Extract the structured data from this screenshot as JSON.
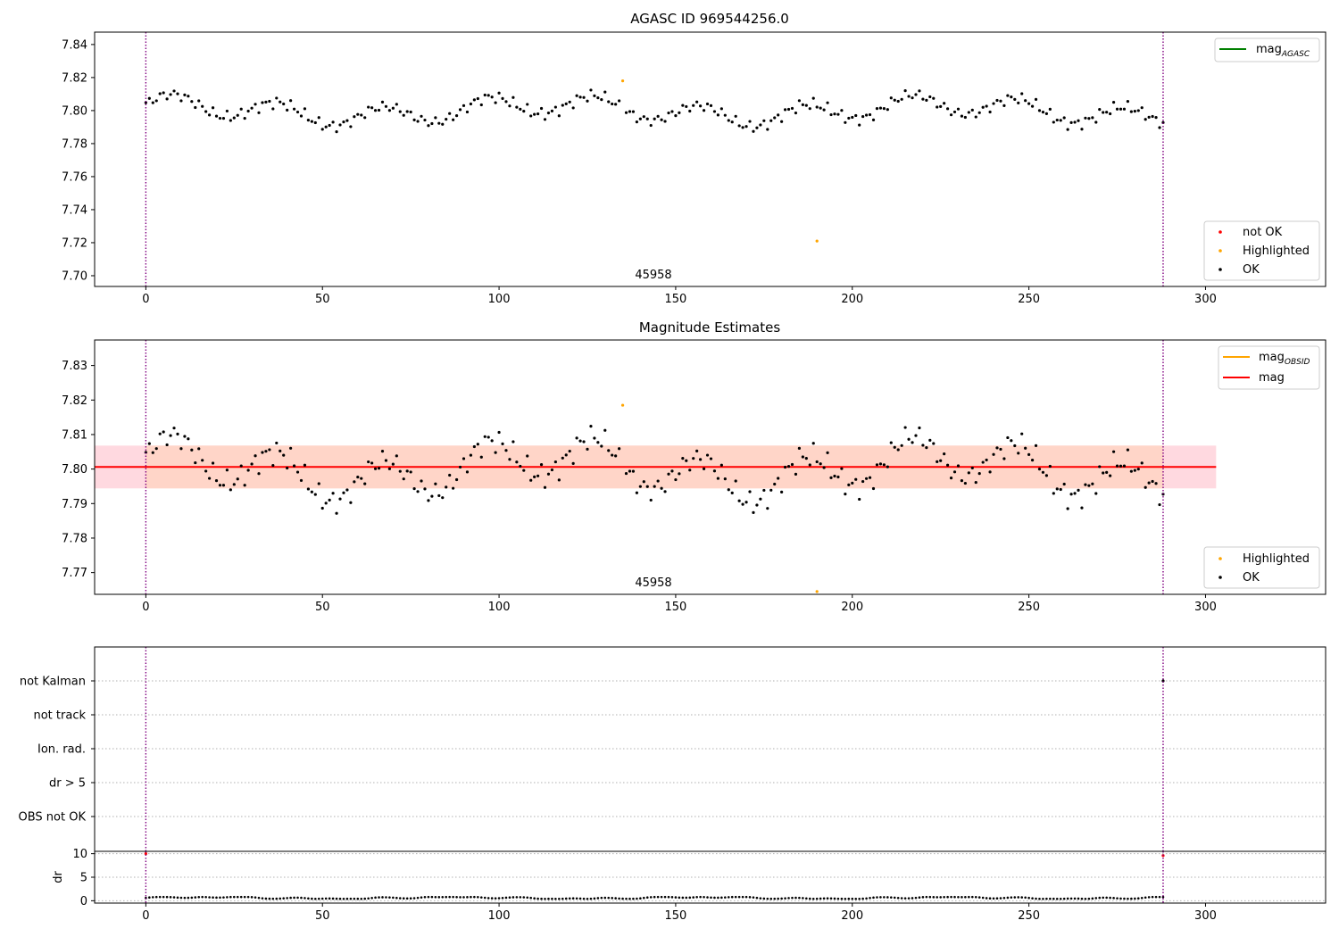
{
  "chart_data": [
    {
      "type": "scatter",
      "title": "AGASC ID 969544256.0",
      "xlim": [
        -14.5,
        334
      ],
      "ylim": [
        7.6935,
        7.8475
      ],
      "xticks": [
        0,
        50,
        100,
        150,
        200,
        250,
        300
      ],
      "yticks": [
        7.7,
        7.72,
        7.74,
        7.76,
        7.78,
        7.8,
        7.82,
        7.84
      ],
      "ytick_labels": [
        "7.70",
        "7.72",
        "7.74",
        "7.76",
        "7.78",
        "7.80",
        "7.82",
        "7.84"
      ],
      "grid": false,
      "vlines": [
        0,
        288
      ],
      "annotation": {
        "text": "45958",
        "x": 144,
        "y": 7.697
      },
      "legends": [
        {
          "placement": "top-right",
          "entries": [
            {
              "label": "mag",
              "sub": "AGASC",
              "color": "#008000",
              "marker": "line"
            }
          ]
        },
        {
          "placement": "bottom-right",
          "entries": [
            {
              "label": "not OK",
              "color": "#ff0000",
              "marker": "dot"
            },
            {
              "label": "Highlighted",
              "color": "#ffa500",
              "marker": "dot"
            },
            {
              "label": "OK",
              "color": "#000000",
              "marker": "dot"
            }
          ]
        }
      ],
      "series": [
        {
          "name": "OK",
          "color": "#000000",
          "base": 7.8,
          "amplitude": 1.0
        },
        {
          "name": "Highlighted",
          "color": "#ffa500",
          "points": [
            [
              135,
              7.818
            ],
            [
              190,
              7.721
            ]
          ]
        }
      ]
    },
    {
      "type": "scatter",
      "title": "Magnitude Estimates",
      "xlim": [
        -14.5,
        334
      ],
      "ylim": [
        7.7637,
        7.8374
      ],
      "xticks": [
        0,
        50,
        100,
        150,
        200,
        250,
        300
      ],
      "yticks": [
        7.77,
        7.78,
        7.79,
        7.8,
        7.81,
        7.82,
        7.83
      ],
      "ytick_labels": [
        "7.77",
        "7.78",
        "7.79",
        "7.80",
        "7.81",
        "7.82",
        "7.83"
      ],
      "grid": false,
      "vlines": [
        0,
        288
      ],
      "annotation": {
        "text": "45958",
        "x": 144,
        "y": 7.7655
      },
      "mean_line": {
        "value": 7.8006,
        "color": "#ff0000",
        "x_range": [
          -14.5,
          303
        ]
      },
      "bands": [
        {
          "y_range": [
            7.7944,
            7.8068
          ],
          "x_range": [
            -14.5,
            303
          ],
          "color": "#ffc0cb"
        },
        {
          "y_range": [
            7.7944,
            7.8068
          ],
          "x_range": [
            0,
            288
          ],
          "color": "#ffd2b8"
        }
      ],
      "legends": [
        {
          "placement": "top-right",
          "entries": [
            {
              "label": "mag",
              "sub": "OBSID",
              "color": "#ffa500",
              "marker": "line"
            },
            {
              "label": "mag",
              "sub": "",
              "color": "#ff0000",
              "marker": "line"
            }
          ]
        },
        {
          "placement": "bottom-right",
          "entries": [
            {
              "label": "Highlighted",
              "color": "#ffa500",
              "marker": "dot"
            },
            {
              "label": "OK",
              "color": "#000000",
              "marker": "dot"
            }
          ]
        }
      ],
      "series": [
        {
          "name": "OK",
          "color": "#000000",
          "base": 7.8,
          "amplitude": 1.0
        },
        {
          "name": "Highlighted",
          "color": "#ffa500",
          "points": [
            [
              135,
              7.8185
            ],
            [
              190,
              7.7645
            ]
          ]
        }
      ]
    },
    {
      "type": "scatter",
      "title": "",
      "xlim": [
        -14.5,
        334
      ],
      "categories": [
        "not Kalman",
        "not track",
        "Ion. rad.",
        "dr > 5",
        "OBS not OK"
      ],
      "vlines": [
        0,
        288
      ],
      "flag_points": [
        {
          "category": "not Kalman",
          "x": 288
        }
      ],
      "grid": true
    },
    {
      "type": "scatter",
      "title": "",
      "ylabel": "dr",
      "xlim": [
        -14.5,
        334
      ],
      "ylim": [
        -0.5,
        10.5
      ],
      "xticks": [
        0,
        50,
        100,
        150,
        200,
        250,
        300
      ],
      "yticks": [
        0,
        5,
        10
      ],
      "ytick_labels": [
        "0",
        "5",
        "10"
      ],
      "grid": true,
      "vlines": [
        0,
        288
      ],
      "series": [
        {
          "name": "dr",
          "color": "#000000",
          "base": 0.4,
          "amplitude": 0.4
        }
      ],
      "marked_points": [
        {
          "x": 288,
          "y": 9.6,
          "color": "#ff0000"
        },
        {
          "x": 0,
          "y": 10,
          "color": "#ff0000"
        }
      ]
    }
  ]
}
